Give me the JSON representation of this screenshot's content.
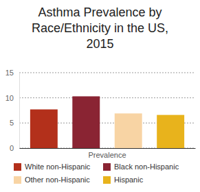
{
  "chart_data": {
    "type": "bar",
    "title": "Asthma Prevalence by Race/Ethnicity in the US, 2015",
    "categories": [
      "Prevalence"
    ],
    "series": [
      {
        "name": "White non-Hispanic",
        "color": "#b3301b",
        "values": [
          7.7
        ]
      },
      {
        "name": "Black non-Hispanic",
        "color": "#8a2433",
        "values": [
          10.3
        ]
      },
      {
        "name": "Other non-Hispanic",
        "color": "#f8d4a4",
        "values": [
          6.9
        ]
      },
      {
        "name": "Hispanic",
        "color": "#e8b31c",
        "values": [
          6.6
        ]
      }
    ],
    "ylim": [
      0,
      15
    ],
    "yticks": [
      0,
      5,
      10,
      15
    ],
    "grid": true,
    "legend": "bottom"
  }
}
